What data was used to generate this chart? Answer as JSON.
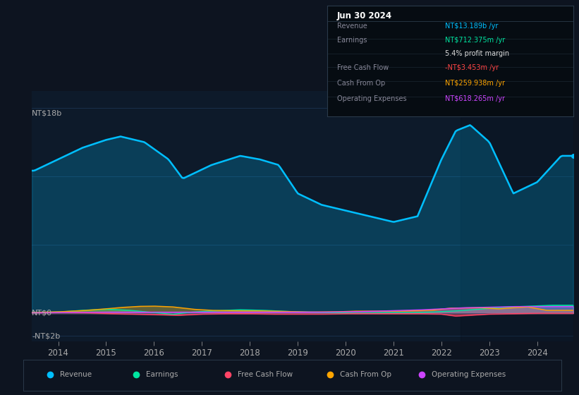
{
  "bg_color": "#0d1420",
  "chart_bg": "#0d1a2a",
  "text_color": "#aaaaaa",
  "ylabel_top": "NT$18b",
  "ylabel_zero": "NT$0",
  "ylabel_neg": "-NT$2b",
  "x_labels": [
    "2014",
    "2015",
    "2016",
    "2017",
    "2018",
    "2019",
    "2020",
    "2021",
    "2022",
    "2023",
    "2024"
  ],
  "legend": [
    {
      "label": "Revenue",
      "color": "#00bfff"
    },
    {
      "label": "Earnings",
      "color": "#00e5a0"
    },
    {
      "label": "Free Cash Flow",
      "color": "#ff4466"
    },
    {
      "label": "Cash From Op",
      "color": "#ffa500"
    },
    {
      "label": "Operating Expenses",
      "color": "#cc44ff"
    }
  ],
  "info_box_bg": "#060c12",
  "info_box_border": "#2a3a4a",
  "info_date": "Jun 30 2024",
  "info_rows": [
    {
      "label": "Revenue",
      "value": "NT$13.189b /yr",
      "vcolor": "#00bfff",
      "lcolor": "#888899"
    },
    {
      "label": "Earnings",
      "value": "NT$712.375m /yr",
      "vcolor": "#00e5a0",
      "lcolor": "#888899"
    },
    {
      "label": "",
      "value": "5.4% profit margin",
      "vcolor": "#dddddd",
      "lcolor": "#888899"
    },
    {
      "label": "Free Cash Flow",
      "value": "-NT$3.453m /yr",
      "vcolor": "#ff4444",
      "lcolor": "#888899"
    },
    {
      "label": "Cash From Op",
      "value": "NT$259.938m /yr",
      "vcolor": "#ffa500",
      "lcolor": "#888899"
    },
    {
      "label": "Operating Expenses",
      "value": "NT$618.265m /yr",
      "vcolor": "#cc44ff",
      "lcolor": "#888899"
    }
  ],
  "rev_ctrl_x": [
    2013.5,
    2014.0,
    2014.5,
    2015.0,
    2015.3,
    2015.8,
    2016.3,
    2016.6,
    2017.2,
    2017.8,
    2018.2,
    2018.6,
    2019.0,
    2019.5,
    2020.0,
    2020.5,
    2021.0,
    2021.5,
    2022.0,
    2022.3,
    2022.6,
    2023.0,
    2023.5,
    2024.0,
    2024.5,
    2024.65
  ],
  "rev_ctrl_y": [
    12.5,
    13.5,
    14.5,
    15.2,
    15.5,
    15.0,
    13.5,
    11.8,
    13.0,
    13.8,
    13.5,
    13.0,
    10.5,
    9.5,
    9.0,
    8.5,
    8.0,
    8.5,
    13.5,
    16.0,
    16.5,
    15.0,
    10.5,
    11.5,
    13.8,
    13.8
  ],
  "earn_ctrl_x": [
    2013.5,
    2014.0,
    2014.5,
    2015.0,
    2015.5,
    2016.0,
    2016.4,
    2016.8,
    2017.2,
    2017.8,
    2018.3,
    2018.8,
    2019.2,
    2019.8,
    2020.2,
    2020.8,
    2021.0,
    2021.3,
    2021.8,
    2022.3,
    2022.8,
    2023.2,
    2023.8,
    2024.3,
    2024.65
  ],
  "earn_ctrl_y": [
    0.05,
    0.1,
    0.25,
    0.35,
    0.25,
    0.05,
    -0.1,
    0.1,
    0.2,
    0.3,
    0.25,
    0.15,
    0.1,
    0.05,
    0.0,
    0.05,
    0.05,
    0.05,
    0.1,
    0.2,
    0.35,
    0.5,
    0.6,
    0.7,
    0.7
  ],
  "fcf_ctrl_x": [
    2013.5,
    2014.0,
    2014.5,
    2015.0,
    2015.5,
    2016.0,
    2016.5,
    2017.0,
    2017.5,
    2018.0,
    2018.5,
    2019.0,
    2019.5,
    2020.0,
    2020.5,
    2021.0,
    2021.5,
    2022.0,
    2022.3,
    2022.7,
    2023.0,
    2023.5,
    2024.0,
    2024.65
  ],
  "fcf_ctrl_y": [
    0.02,
    0.04,
    0.03,
    -0.03,
    -0.08,
    -0.12,
    -0.18,
    -0.08,
    -0.04,
    -0.04,
    -0.08,
    -0.08,
    -0.08,
    -0.04,
    -0.04,
    -0.04,
    -0.04,
    -0.08,
    -0.25,
    -0.15,
    -0.08,
    -0.04,
    -0.01,
    -0.01
  ],
  "cop_ctrl_x": [
    2013.5,
    2014.0,
    2014.5,
    2015.0,
    2015.3,
    2015.7,
    2016.0,
    2016.4,
    2016.8,
    2017.2,
    2017.8,
    2018.2,
    2018.8,
    2019.2,
    2019.8,
    2020.2,
    2020.8,
    2021.2,
    2021.8,
    2022.2,
    2022.8,
    2023.2,
    2023.5,
    2023.8,
    2024.2,
    2024.65
  ],
  "cop_ctrl_y": [
    0.08,
    0.12,
    0.22,
    0.38,
    0.5,
    0.6,
    0.62,
    0.55,
    0.35,
    0.25,
    0.2,
    0.2,
    0.15,
    0.1,
    0.12,
    0.18,
    0.18,
    0.18,
    0.25,
    0.45,
    0.48,
    0.38,
    0.48,
    0.55,
    0.25,
    0.25
  ],
  "opex_ctrl_x": [
    2013.5,
    2014.0,
    2014.5,
    2015.0,
    2015.5,
    2016.0,
    2016.5,
    2017.0,
    2017.5,
    2018.0,
    2018.5,
    2019.0,
    2019.5,
    2020.0,
    2020.5,
    2021.0,
    2021.5,
    2022.0,
    2022.5,
    2023.0,
    2023.5,
    2024.0,
    2024.65
  ],
  "opex_ctrl_y": [
    0.04,
    0.06,
    0.08,
    0.1,
    0.09,
    0.09,
    0.09,
    0.09,
    0.09,
    0.09,
    0.09,
    0.09,
    0.09,
    0.12,
    0.16,
    0.22,
    0.28,
    0.38,
    0.48,
    0.52,
    0.58,
    0.58,
    0.58
  ],
  "ylim": [
    -2.5,
    19.5
  ],
  "xlim": [
    2013.45,
    2024.75
  ]
}
